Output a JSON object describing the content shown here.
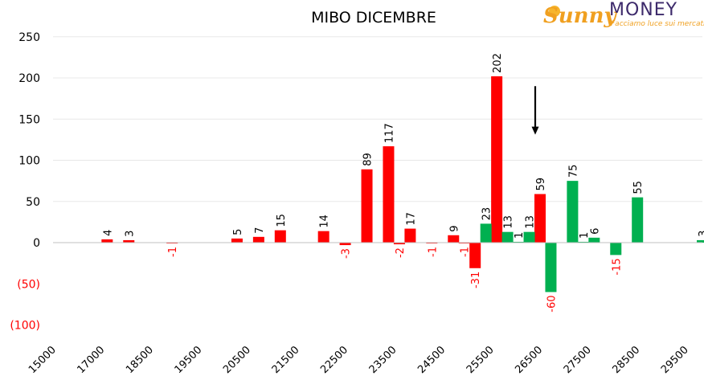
{
  "chart_data": {
    "type": "bar",
    "title": "MIBO DICEMBRE",
    "xlabel": "",
    "ylabel": "",
    "ylim": [
      -100,
      250
    ],
    "yticks": [
      {
        "value": 250,
        "label": "250"
      },
      {
        "value": 200,
        "label": "200"
      },
      {
        "value": 150,
        "label": "150"
      },
      {
        "value": 100,
        "label": "100"
      },
      {
        "value": 50,
        "label": "50"
      },
      {
        "value": 0,
        "label": "0"
      },
      {
        "value": -50,
        "label": "(50)"
      },
      {
        "value": -100,
        "label": "(100)"
      }
    ],
    "xtick_labels": [
      "15000",
      "17000",
      "18500",
      "19500",
      "20500",
      "21500",
      "22500",
      "23500",
      "24500",
      "25500",
      "26500",
      "27500",
      "28500",
      "29500"
    ],
    "grid": true,
    "colors": {
      "red": "#ff0000",
      "green": "#00b050",
      "grid": "#e8e8e8",
      "axis": "#c0c0c0"
    },
    "series": [
      {
        "color": "red",
        "points": [
          {
            "x": 16000,
            "value": 4
          },
          {
            "x": 16500,
            "value": 3
          },
          {
            "x": 17500,
            "value": -1
          },
          {
            "x": 19000,
            "value": 5
          },
          {
            "x": 19500,
            "value": 7
          },
          {
            "x": 20000,
            "value": 15
          },
          {
            "x": 21000,
            "value": 14
          },
          {
            "x": 21500,
            "value": -3
          },
          {
            "x": 22000,
            "value": 89
          },
          {
            "x": 22500,
            "value": 117
          },
          {
            "x": 22750,
            "value": -2
          },
          {
            "x": 23000,
            "value": 17
          },
          {
            "x": 23500,
            "value": -1
          },
          {
            "x": 24000,
            "value": 9
          },
          {
            "x": 24250,
            "value": -1
          },
          {
            "x": 24500,
            "value": -31
          },
          {
            "x": 25000,
            "value": 202
          },
          {
            "x": 26000,
            "value": 59
          }
        ]
      },
      {
        "color": "green",
        "points": [
          {
            "x": 24750,
            "value": 23
          },
          {
            "x": 25250,
            "value": 13
          },
          {
            "x": 25500,
            "value": 1
          },
          {
            "x": 25750,
            "value": 13
          },
          {
            "x": 26250,
            "value": -60
          },
          {
            "x": 26750,
            "value": 75
          },
          {
            "x": 27000,
            "value": 1
          },
          {
            "x": 27250,
            "value": 6
          },
          {
            "x": 27750,
            "value": -15
          },
          {
            "x": 28250,
            "value": 55
          },
          {
            "x": 29750,
            "value": 3
          }
        ]
      }
    ],
    "annotations": [
      {
        "type": "arrow",
        "x": 26000,
        "y_from": 190,
        "y_to": 133,
        "direction": "down"
      }
    ]
  },
  "logo": {
    "sunny": "Sunny",
    "money": "MONEY",
    "tagline": "Facciamo luce sui mercati"
  }
}
